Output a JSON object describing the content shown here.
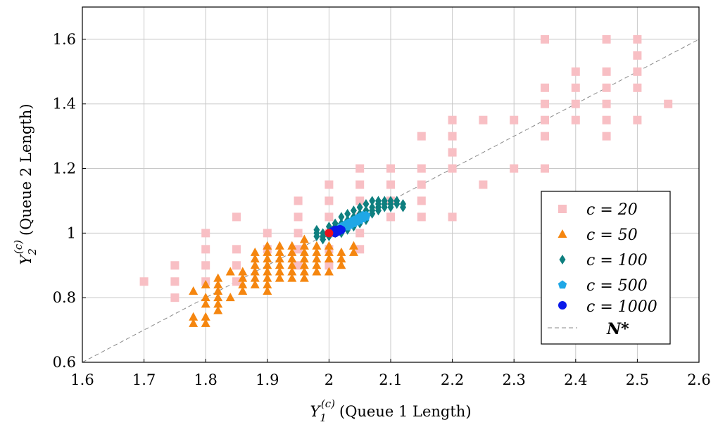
{
  "chart_data": {
    "type": "scatter",
    "xlabel": "(Queue 1 Length)",
    "xlabel_symbol": "Y",
    "xlabel_sub": "1",
    "xlabel_sup": "(c)",
    "ylabel": "(Queue 2 Length)",
    "ylabel_symbol": "Y",
    "ylabel_sub": "2",
    "ylabel_sup": "(c)",
    "xlim": [
      1.6,
      2.6
    ],
    "ylim": [
      0.6,
      1.7
    ],
    "grid": true,
    "legend_position": "bottom-right",
    "xticks": [
      1.6,
      1.7,
      1.8,
      1.9,
      2.0,
      2.1,
      2.2,
      2.3,
      2.4,
      2.5,
      2.6
    ],
    "xtick_labels": [
      "1.6",
      "1.7",
      "1.8",
      "1.9",
      "2",
      "2.1",
      "2.2",
      "2.3",
      "2.4",
      "2.5",
      "2.6"
    ],
    "yticks": [
      0.6,
      0.8,
      1.0,
      1.2,
      1.4,
      1.6
    ],
    "ytick_labels": [
      "0.6",
      "0.8",
      "1",
      "1.2",
      "1.4",
      "1.6"
    ],
    "series": [
      {
        "name": "c = 20",
        "marker": "square",
        "color": "#f8bfc4",
        "points": [
          [
            1.7,
            0.85
          ],
          [
            1.75,
            0.9
          ],
          [
            1.75,
            0.85
          ],
          [
            1.75,
            0.8
          ],
          [
            1.8,
            1.0
          ],
          [
            1.8,
            0.95
          ],
          [
            1.8,
            0.9
          ],
          [
            1.8,
            0.85
          ],
          [
            1.85,
            1.05
          ],
          [
            1.85,
            0.95
          ],
          [
            1.85,
            0.9
          ],
          [
            1.85,
            0.85
          ],
          [
            1.9,
            1.0
          ],
          [
            1.9,
            0.95
          ],
          [
            1.95,
            1.1
          ],
          [
            1.95,
            1.05
          ],
          [
            1.95,
            1.0
          ],
          [
            1.95,
            0.95
          ],
          [
            1.95,
            0.9
          ],
          [
            2.0,
            1.15
          ],
          [
            2.0,
            1.1
          ],
          [
            2.0,
            1.05
          ],
          [
            2.0,
            1.0
          ],
          [
            2.0,
            0.95
          ],
          [
            2.0,
            0.9
          ],
          [
            2.05,
            1.2
          ],
          [
            2.05,
            1.15
          ],
          [
            2.05,
            1.1
          ],
          [
            2.05,
            1.05
          ],
          [
            2.05,
            1.0
          ],
          [
            2.05,
            0.95
          ],
          [
            2.1,
            1.2
          ],
          [
            2.1,
            1.15
          ],
          [
            2.1,
            1.1
          ],
          [
            2.1,
            1.05
          ],
          [
            2.15,
            1.3
          ],
          [
            2.15,
            1.2
          ],
          [
            2.15,
            1.15
          ],
          [
            2.15,
            1.1
          ],
          [
            2.15,
            1.05
          ],
          [
            2.2,
            1.35
          ],
          [
            2.2,
            1.3
          ],
          [
            2.2,
            1.25
          ],
          [
            2.2,
            1.2
          ],
          [
            2.2,
            1.05
          ],
          [
            2.25,
            1.35
          ],
          [
            2.25,
            1.15
          ],
          [
            2.3,
            1.35
          ],
          [
            2.3,
            1.2
          ],
          [
            2.35,
            1.6
          ],
          [
            2.35,
            1.45
          ],
          [
            2.35,
            1.4
          ],
          [
            2.35,
            1.35
          ],
          [
            2.35,
            1.3
          ],
          [
            2.35,
            1.2
          ],
          [
            2.4,
            1.5
          ],
          [
            2.4,
            1.45
          ],
          [
            2.4,
            1.4
          ],
          [
            2.4,
            1.35
          ],
          [
            2.45,
            1.6
          ],
          [
            2.45,
            1.5
          ],
          [
            2.45,
            1.45
          ],
          [
            2.45,
            1.4
          ],
          [
            2.45,
            1.35
          ],
          [
            2.45,
            1.3
          ],
          [
            2.5,
            1.6
          ],
          [
            2.5,
            1.55
          ],
          [
            2.5,
            1.5
          ],
          [
            2.5,
            1.45
          ],
          [
            2.5,
            1.35
          ],
          [
            2.55,
            1.4
          ]
        ]
      },
      {
        "name": "c = 50",
        "marker": "triangle",
        "color": "#f5860f",
        "points": [
          [
            1.78,
            0.82
          ],
          [
            1.78,
            0.74
          ],
          [
            1.78,
            0.72
          ],
          [
            1.8,
            0.84
          ],
          [
            1.8,
            0.8
          ],
          [
            1.8,
            0.78
          ],
          [
            1.8,
            0.74
          ],
          [
            1.8,
            0.72
          ],
          [
            1.82,
            0.86
          ],
          [
            1.82,
            0.84
          ],
          [
            1.82,
            0.82
          ],
          [
            1.82,
            0.8
          ],
          [
            1.82,
            0.78
          ],
          [
            1.82,
            0.76
          ],
          [
            1.84,
            0.88
          ],
          [
            1.84,
            0.8
          ],
          [
            1.86,
            0.88
          ],
          [
            1.86,
            0.86
          ],
          [
            1.86,
            0.84
          ],
          [
            1.86,
            0.82
          ],
          [
            1.88,
            0.94
          ],
          [
            1.88,
            0.92
          ],
          [
            1.88,
            0.9
          ],
          [
            1.88,
            0.88
          ],
          [
            1.88,
            0.86
          ],
          [
            1.88,
            0.84
          ],
          [
            1.9,
            0.96
          ],
          [
            1.9,
            0.94
          ],
          [
            1.9,
            0.92
          ],
          [
            1.9,
            0.9
          ],
          [
            1.9,
            0.88
          ],
          [
            1.9,
            0.86
          ],
          [
            1.9,
            0.84
          ],
          [
            1.9,
            0.82
          ],
          [
            1.92,
            0.96
          ],
          [
            1.92,
            0.94
          ],
          [
            1.92,
            0.92
          ],
          [
            1.92,
            0.9
          ],
          [
            1.92,
            0.88
          ],
          [
            1.92,
            0.86
          ],
          [
            1.94,
            0.96
          ],
          [
            1.94,
            0.94
          ],
          [
            1.94,
            0.92
          ],
          [
            1.94,
            0.9
          ],
          [
            1.94,
            0.88
          ],
          [
            1.94,
            0.86
          ],
          [
            1.96,
            0.98
          ],
          [
            1.96,
            0.96
          ],
          [
            1.96,
            0.94
          ],
          [
            1.96,
            0.92
          ],
          [
            1.96,
            0.9
          ],
          [
            1.96,
            0.88
          ],
          [
            1.96,
            0.86
          ],
          [
            1.98,
            0.96
          ],
          [
            1.98,
            0.94
          ],
          [
            1.98,
            0.92
          ],
          [
            1.98,
            0.9
          ],
          [
            1.98,
            0.88
          ],
          [
            2.0,
            0.96
          ],
          [
            2.0,
            0.94
          ],
          [
            2.0,
            0.92
          ],
          [
            2.0,
            0.88
          ],
          [
            2.02,
            0.94
          ],
          [
            2.02,
            0.92
          ],
          [
            2.02,
            0.9
          ],
          [
            2.04,
            0.96
          ],
          [
            2.04,
            0.94
          ]
        ]
      },
      {
        "name": "c = 100",
        "marker": "diamond",
        "color": "#0e7f7f",
        "points": [
          [
            1.98,
            1.01
          ],
          [
            1.98,
            1.0
          ],
          [
            1.98,
            0.99
          ],
          [
            1.99,
            1.0
          ],
          [
            1.99,
            0.99
          ],
          [
            1.99,
            0.98
          ],
          [
            2.0,
            1.02
          ],
          [
            2.0,
            1.0
          ],
          [
            2.0,
            0.99
          ],
          [
            2.01,
            1.03
          ],
          [
            2.01,
            1.02
          ],
          [
            2.01,
            1.01
          ],
          [
            2.01,
            1.0
          ],
          [
            2.02,
            1.05
          ],
          [
            2.02,
            1.03
          ],
          [
            2.02,
            1.02
          ],
          [
            2.02,
            1.01
          ],
          [
            2.02,
            1.0
          ],
          [
            2.03,
            1.06
          ],
          [
            2.03,
            1.04
          ],
          [
            2.03,
            1.03
          ],
          [
            2.03,
            1.02
          ],
          [
            2.03,
            1.01
          ],
          [
            2.04,
            1.07
          ],
          [
            2.04,
            1.05
          ],
          [
            2.04,
            1.04
          ],
          [
            2.04,
            1.03
          ],
          [
            2.04,
            1.02
          ],
          [
            2.05,
            1.08
          ],
          [
            2.05,
            1.06
          ],
          [
            2.05,
            1.05
          ],
          [
            2.05,
            1.04
          ],
          [
            2.05,
            1.03
          ],
          [
            2.06,
            1.09
          ],
          [
            2.06,
            1.07
          ],
          [
            2.06,
            1.06
          ],
          [
            2.06,
            1.05
          ],
          [
            2.06,
            1.04
          ],
          [
            2.07,
            1.1
          ],
          [
            2.07,
            1.08
          ],
          [
            2.07,
            1.07
          ],
          [
            2.07,
            1.06
          ],
          [
            2.08,
            1.1
          ],
          [
            2.08,
            1.09
          ],
          [
            2.08,
            1.08
          ],
          [
            2.08,
            1.07
          ],
          [
            2.09,
            1.1
          ],
          [
            2.09,
            1.09
          ],
          [
            2.09,
            1.08
          ],
          [
            2.1,
            1.1
          ],
          [
            2.1,
            1.09
          ],
          [
            2.1,
            1.08
          ],
          [
            2.11,
            1.1
          ],
          [
            2.11,
            1.09
          ],
          [
            2.12,
            1.09
          ],
          [
            2.12,
            1.08
          ]
        ]
      },
      {
        "name": "c = 500",
        "marker": "pentagon",
        "color": "#1fa7e6",
        "points": [
          [
            2.02,
            1.02
          ],
          [
            2.025,
            1.025
          ],
          [
            2.03,
            1.03
          ],
          [
            2.03,
            1.02
          ],
          [
            2.035,
            1.035
          ],
          [
            2.035,
            1.025
          ],
          [
            2.04,
            1.04
          ],
          [
            2.04,
            1.03
          ],
          [
            2.045,
            1.045
          ],
          [
            2.045,
            1.035
          ],
          [
            2.05,
            1.05
          ],
          [
            2.05,
            1.04
          ],
          [
            2.055,
            1.055
          ],
          [
            2.055,
            1.045
          ],
          [
            2.06,
            1.055
          ],
          [
            2.06,
            1.05
          ]
        ]
      },
      {
        "name": "c = 1000",
        "marker": "circle",
        "color": "#0a19ea",
        "points": [
          [
            2.005,
            1.005
          ],
          [
            2.01,
            1.01
          ],
          [
            2.01,
            1.0
          ],
          [
            2.015,
            1.01
          ],
          [
            2.015,
            1.005
          ],
          [
            2.018,
            1.012
          ],
          [
            2.02,
            1.01
          ]
        ]
      }
    ],
    "reference_line": {
      "name": "N*",
      "style": "dashed",
      "color": "#8a8a8a",
      "from": [
        1.6,
        0.6
      ],
      "to": [
        2.6,
        1.6
      ]
    },
    "highlight_point": {
      "x": 2.0,
      "y": 1.0,
      "color": "#e8101e"
    }
  }
}
